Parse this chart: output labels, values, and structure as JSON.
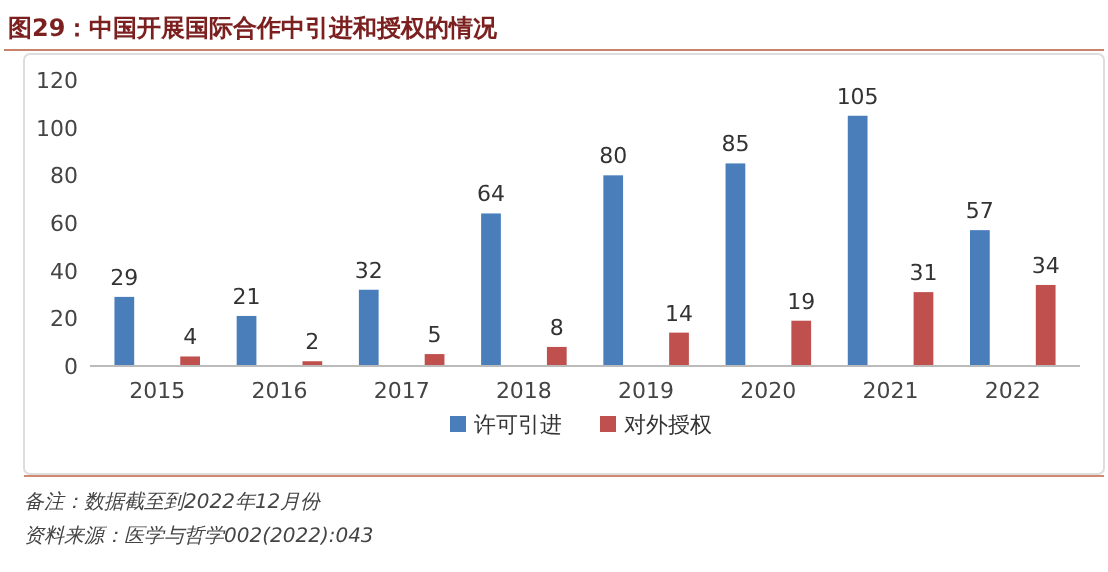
{
  "chart_data": {
    "type": "bar",
    "title": "图29：中国开展国际合作中引进和授权的情况",
    "categories": [
      "2015",
      "2016",
      "2017",
      "2018",
      "2019",
      "2020",
      "2021",
      "2022"
    ],
    "series": [
      {
        "name": "许可引进",
        "color": "#4a7ebb",
        "values": [
          29,
          21,
          32,
          64,
          80,
          85,
          105,
          57
        ]
      },
      {
        "name": "对外授权",
        "color": "#c0504d",
        "values": [
          4,
          2,
          5,
          8,
          14,
          19,
          31,
          34
        ]
      }
    ],
    "ylim": [
      0,
      120
    ],
    "yticks": [
      0,
      20,
      40,
      60,
      80,
      100,
      120
    ],
    "grid": false,
    "legend": "bottom",
    "data_labels": true,
    "annotations": [
      "备注：数据截至到2022年12月份",
      "资料来源：医学与哲学002(2022):043"
    ]
  }
}
